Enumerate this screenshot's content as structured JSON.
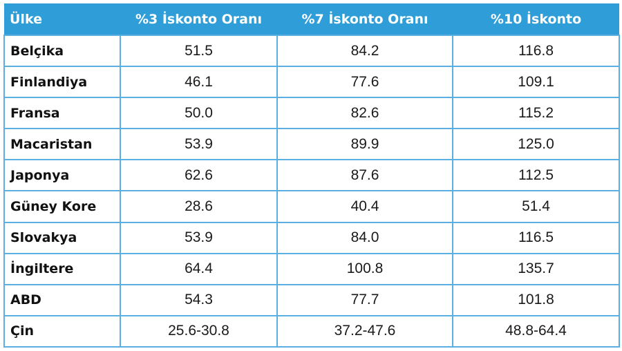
{
  "headers": [
    "Ülke",
    "%3 İskonto Oranı",
    "%7 İskonto Oranı",
    "%10 İskonto"
  ],
  "rows": [
    {
      "country": "Belçika",
      "r3": "51.5",
      "r7": "84.2",
      "r10": "116.8"
    },
    {
      "country": "Finlandiya",
      "r3": "46.1",
      "r7": "77.6",
      "r10": "109.1"
    },
    {
      "country": "Fransa",
      "r3": "50.0",
      "r7": "82.6",
      "r10": "115.2"
    },
    {
      "country": "Macaristan",
      "r3": "53.9",
      "r7": "89.9",
      "r10": "125.0"
    },
    {
      "country": "Japonya",
      "r3": "62.6",
      "r7": "87.6",
      "r10": "112.5"
    },
    {
      "country": "Güney Kore",
      "r3": "28.6",
      "r7": "40.4",
      "r10": "51.4"
    },
    {
      "country": "Slovakya",
      "r3": "53.9",
      "r7": "84.0",
      "r10": "116.5"
    },
    {
      "country": "İngiltere",
      "r3": "64.4",
      "r7": "100.8",
      "r10": "135.7"
    },
    {
      "country": "ABD",
      "r3": "54.3",
      "r7": "77.7",
      "r10": "101.8"
    },
    {
      "country": "Çin",
      "r3": "25.6-30.8",
      "r7": "37.2-47.6",
      "r10": "48.8-64.4"
    }
  ],
  "colors": {
    "header_bg": "#2f9ed8",
    "border": "#5aaee0"
  }
}
